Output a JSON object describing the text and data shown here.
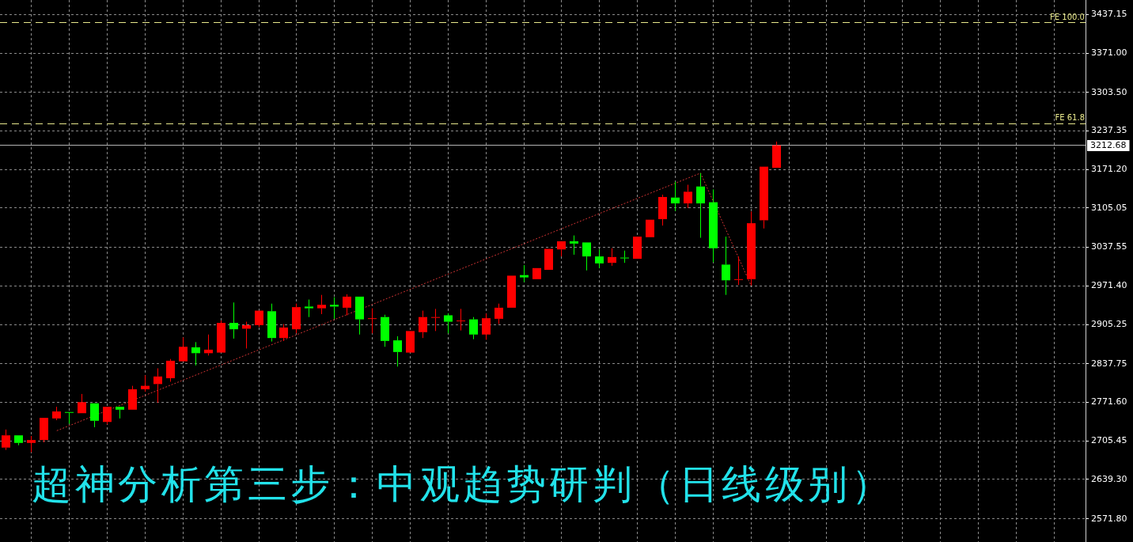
{
  "chart_data": {
    "type": "candlestick",
    "title": "超神分析第三步：中观趋势研判（日线级别）",
    "categories": [
      null,
      null,
      null,
      null,
      null,
      null,
      null,
      null,
      null,
      null,
      null,
      null,
      null,
      null,
      null,
      null,
      null,
      null,
      null,
      null,
      null,
      null,
      null,
      null,
      null,
      null,
      null,
      null,
      null,
      null,
      null,
      null,
      null,
      null,
      null,
      null,
      null,
      null,
      null,
      null,
      null,
      null,
      null,
      null,
      null,
      null,
      null,
      null,
      null,
      null,
      null,
      null,
      null,
      null,
      null,
      null,
      null,
      null,
      null,
      null,
      null,
      null,
      null,
      null,
      null,
      null,
      null,
      null,
      null,
      null,
      null,
      null,
      null,
      null,
      null,
      null,
      null,
      null,
      null,
      null,
      null,
      null,
      null,
      null,
      null,
      null
    ],
    "ohlc": [
      [
        2694,
        2725,
        2690,
        2715
      ],
      [
        2715,
        2715,
        2698,
        2702
      ],
      [
        2702,
        2714,
        2686,
        2707
      ],
      [
        2707,
        2745,
        2703,
        2745
      ],
      [
        2744,
        2764,
        2741,
        2756
      ],
      [
        2755,
        2755,
        2735,
        2754
      ],
      [
        2753,
        2786,
        2753,
        2772
      ],
      [
        2770,
        2770,
        2729,
        2740
      ],
      [
        2738,
        2764,
        2734,
        2764
      ],
      [
        2764,
        2764,
        2744,
        2759
      ],
      [
        2759,
        2800,
        2759,
        2794
      ],
      [
        2794,
        2818,
        2790,
        2800
      ],
      [
        2803,
        2830,
        2771,
        2816
      ],
      [
        2813,
        2846,
        2807,
        2843
      ],
      [
        2842,
        2883,
        2842,
        2867
      ],
      [
        2866,
        2875,
        2835,
        2856
      ],
      [
        2856,
        2888,
        2852,
        2862
      ],
      [
        2857,
        2912,
        2857,
        2908
      ],
      [
        2908,
        2943,
        2881,
        2897
      ],
      [
        2898,
        2910,
        2864,
        2904
      ],
      [
        2904,
        2929,
        2901,
        2929
      ],
      [
        2928,
        2941,
        2876,
        2882
      ],
      [
        2882,
        2906,
        2877,
        2900
      ],
      [
        2897,
        2941,
        2890,
        2935
      ],
      [
        2936,
        2948,
        2918,
        2933
      ],
      [
        2933,
        2956,
        2923,
        2939
      ],
      [
        2939,
        2952,
        2915,
        2936
      ],
      [
        2934,
        2957,
        2921,
        2953
      ],
      [
        2953,
        2953,
        2888,
        2914
      ],
      [
        2915,
        2933,
        2890,
        2916
      ],
      [
        2918,
        2922,
        2867,
        2877
      ],
      [
        2878,
        2885,
        2833,
        2858
      ],
      [
        2857,
        2894,
        2857,
        2894
      ],
      [
        2892,
        2929,
        2882,
        2918
      ],
      [
        2917,
        2932,
        2894,
        2918
      ],
      [
        2921,
        2924,
        2890,
        2910
      ],
      [
        2911,
        2932,
        2895,
        2912
      ],
      [
        2914,
        2918,
        2880,
        2888
      ],
      [
        2888,
        2924,
        2879,
        2916
      ],
      [
        2915,
        2941,
        2906,
        2934
      ],
      [
        2934,
        2989,
        2934,
        2989
      ],
      [
        2990,
        3007,
        2978,
        2986
      ],
      [
        2983,
        3002,
        2983,
        3002
      ],
      [
        2999,
        3035,
        2999,
        3035
      ],
      [
        3034,
        3048,
        3022,
        3048
      ],
      [
        3048,
        3058,
        3025,
        3044
      ],
      [
        3046,
        3046,
        2998,
        3022
      ],
      [
        3022,
        3034,
        3002,
        3010
      ],
      [
        3011,
        3036,
        3006,
        3021
      ],
      [
        3020,
        3032,
        3011,
        3019
      ],
      [
        3018,
        3056,
        3018,
        3056
      ],
      [
        3055,
        3085,
        3055,
        3085
      ],
      [
        3086,
        3128,
        3075,
        3124
      ],
      [
        3123,
        3150,
        3100,
        3113
      ],
      [
        3113,
        3145,
        3105,
        3133
      ],
      [
        3142,
        3165,
        3054,
        3113
      ],
      [
        3115,
        3137,
        3012,
        3036
      ],
      [
        3008,
        3056,
        2956,
        2981
      ],
      [
        2982,
        3022,
        2973,
        2983
      ],
      [
        2983,
        3099,
        2972,
        3079
      ],
      [
        3084,
        3176,
        3070,
        3176
      ],
      [
        3174,
        3219,
        3174,
        3212.68
      ],
      null,
      null,
      null,
      null,
      null,
      null,
      null,
      null,
      null,
      null,
      null,
      null,
      null,
      null,
      null,
      null,
      null,
      null,
      null,
      null,
      null,
      null,
      null,
      null
    ],
    "colors": [
      "#ff0000",
      "#00ff00",
      "#ff0000",
      "#ff0000",
      "#ff0000",
      "#00ff00",
      "#ff0000",
      "#00ff00",
      "#ff0000",
      "#00ff00",
      "#ff0000",
      "#ff0000",
      "#ff0000",
      "#ff0000",
      "#ff0000",
      "#00ff00",
      "#ff0000",
      "#ff0000",
      "#00ff00",
      "#ff0000",
      "#ff0000",
      "#00ff00",
      "#ff0000",
      "#ff0000",
      "#00ff00",
      "#ff0000",
      "#00ff00",
      "#ff0000",
      "#00ff00",
      "#ff0000",
      "#00ff00",
      "#00ff00",
      "#ff0000",
      "#ff0000",
      "#ff0000",
      "#00ff00",
      "#ff0000",
      "#00ff00",
      "#ff0000",
      "#ff0000",
      "#ff0000",
      "#00ff00",
      "#ff0000",
      "#ff0000",
      "#ff0000",
      "#00ff00",
      "#00ff00",
      "#00ff00",
      "#ff0000",
      "#00ff00",
      "#ff0000",
      "#ff0000",
      "#ff0000",
      "#00ff00",
      "#ff0000",
      "#00ff00",
      "#00ff00",
      "#00ff00",
      "#ff0000",
      "#ff0000",
      "#ff0000",
      "#ff0000",
      null,
      null,
      null,
      null,
      null,
      null,
      null,
      null,
      null,
      null,
      null,
      null,
      null,
      null,
      null,
      null,
      null,
      null,
      null,
      null,
      null,
      null,
      null,
      null
    ],
    "series": [
      {
        "type": "line",
        "color": "#cc3333",
        "line_style": "dotted",
        "values": [
          null,
          null,
          null,
          null,
          2723,
          null,
          null,
          null,
          null,
          null,
          null,
          null,
          null,
          null,
          null,
          null,
          null,
          null,
          null,
          null,
          null,
          null,
          null,
          null,
          null,
          null,
          null,
          null,
          null,
          null,
          null,
          null,
          null,
          null,
          null,
          null,
          null,
          null,
          null,
          null,
          null,
          null,
          null,
          null,
          null,
          null,
          null,
          null,
          null,
          null,
          null,
          null,
          null,
          null,
          null,
          3165,
          null,
          null,
          null,
          2972,
          null,
          null,
          null,
          null,
          null,
          null,
          null,
          null,
          null,
          null,
          null,
          null,
          null,
          null,
          null,
          null,
          null,
          null,
          null,
          null,
          null,
          null,
          null,
          null,
          null,
          null
        ]
      }
    ],
    "ylim": [
      2532,
      3462
    ],
    "yticks": [
      {
        "value": 2571.8,
        "label": "2571.80"
      },
      {
        "value": 2639.3,
        "label": "2639.30"
      },
      2705.45,
      {
        "value": 2771.6,
        "label": "2771.60"
      },
      2837.75,
      2905.25,
      {
        "value": 2971.4,
        "label": "2971.40"
      },
      3037.55,
      3105.05,
      {
        "value": 3171.2,
        "label": "3171.20"
      },
      3237.35,
      {
        "value": 3303.5,
        "label": "3303.50"
      },
      {
        "value": 3371,
        "label": "3371.00"
      },
      3437.15
    ],
    "grid": true,
    "tick_labels": "y",
    "ref_lines": [
      {
        "axis": "y",
        "value": 3423,
        "label": "FE 100.0",
        "color": "#e8e88c",
        "line_style": "dashed"
      },
      {
        "axis": "y",
        "value": 3250,
        "label": "FE 61.8",
        "color": "#e8e88c",
        "line_style": "dashed"
      },
      {
        "axis": "y",
        "value": 3212.68,
        "label": "3212.68",
        "color": "#b4b4b4",
        "line_style": "solid"
      }
    ]
  }
}
